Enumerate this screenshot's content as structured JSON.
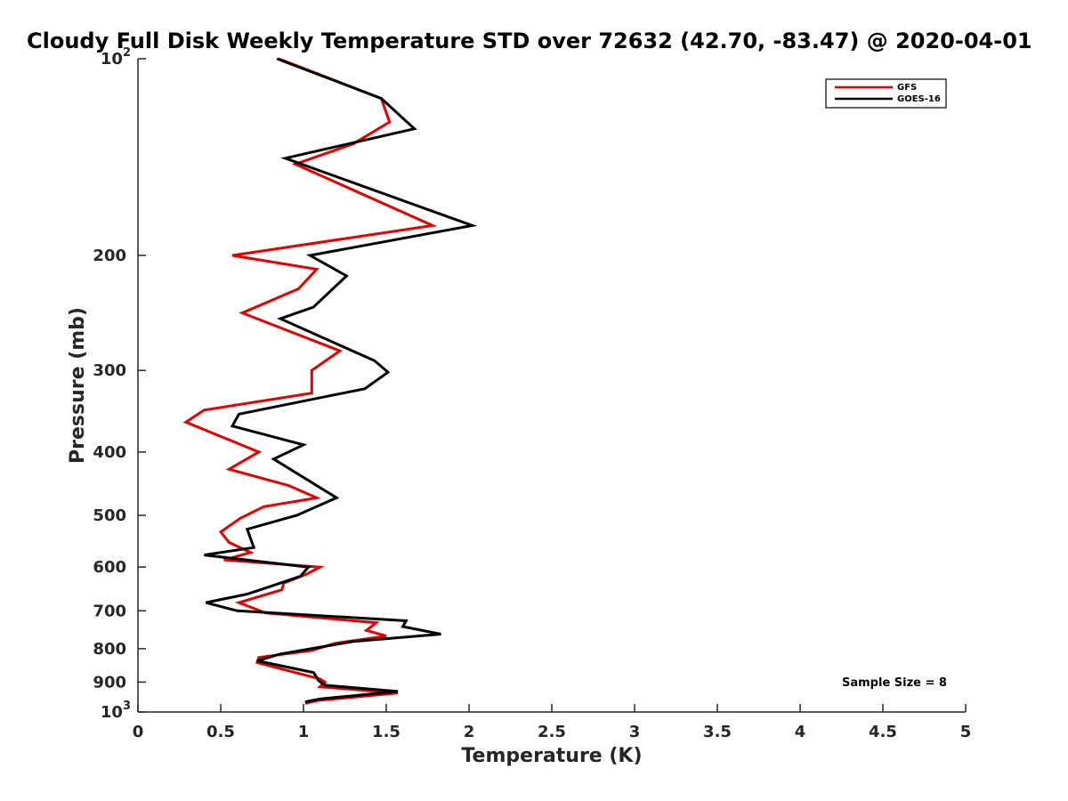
{
  "chart_data": {
    "type": "line",
    "title": "Cloudy Full Disk Weekly Temperature STD over 72632 (42.70, -83.47) @ 2020-04-01",
    "xlabel": "Temperature (K)",
    "ylabel": "Pressure (mb)",
    "xlim": [
      0,
      5
    ],
    "ylim": [
      100,
      1000
    ],
    "y_scale": "log",
    "y_reversed": true,
    "grid": false,
    "legend_position": "top-right",
    "x_ticks": [
      0,
      0.5,
      1,
      1.5,
      2,
      2.5,
      3,
      3.5,
      4,
      4.5,
      5
    ],
    "x_tick_labels": [
      "0",
      "0.5",
      "1",
      "1.5",
      "2",
      "2.5",
      "3",
      "3.5",
      "4",
      "4.5",
      "5"
    ],
    "y_ticks": [
      100,
      200,
      300,
      400,
      500,
      600,
      700,
      800,
      900,
      1000
    ],
    "y_tick_labels": [
      {
        "base": "10",
        "exp": "2"
      },
      {
        "base": "200",
        "exp": ""
      },
      {
        "base": "300",
        "exp": ""
      },
      {
        "base": "400",
        "exp": ""
      },
      {
        "base": "500",
        "exp": ""
      },
      {
        "base": "600",
        "exp": ""
      },
      {
        "base": "700",
        "exp": ""
      },
      {
        "base": "800",
        "exp": ""
      },
      {
        "base": "900",
        "exp": ""
      },
      {
        "base": "10",
        "exp": "3"
      }
    ],
    "annotation": "Sample Size = 8",
    "series": [
      {
        "name": "GFS",
        "color": "#e60000",
        "points": [
          [
            0.85,
            100
          ],
          [
            1.47,
            115
          ],
          [
            1.52,
            125
          ],
          [
            1.3,
            135
          ],
          [
            0.95,
            145
          ],
          [
            1.78,
            180
          ],
          [
            0.57,
            200
          ],
          [
            1.08,
            210
          ],
          [
            0.97,
            225
          ],
          [
            0.63,
            245
          ],
          [
            1.22,
            280
          ],
          [
            1.05,
            300
          ],
          [
            1.05,
            325
          ],
          [
            0.4,
            345
          ],
          [
            0.29,
            360
          ],
          [
            0.73,
            400
          ],
          [
            0.55,
            425
          ],
          [
            0.91,
            450
          ],
          [
            1.08,
            470
          ],
          [
            0.76,
            485
          ],
          [
            0.62,
            505
          ],
          [
            0.5,
            530
          ],
          [
            0.55,
            550
          ],
          [
            0.68,
            570
          ],
          [
            0.52,
            585
          ],
          [
            1.1,
            600
          ],
          [
            1.02,
            615
          ],
          [
            0.88,
            635
          ],
          [
            0.87,
            650
          ],
          [
            0.61,
            680
          ],
          [
            0.77,
            705
          ],
          [
            1.44,
            730
          ],
          [
            1.38,
            750
          ],
          [
            1.5,
            765
          ],
          [
            1.19,
            785
          ],
          [
            1.05,
            805
          ],
          [
            0.73,
            825
          ],
          [
            0.72,
            840
          ],
          [
            1.1,
            890
          ],
          [
            1.13,
            900
          ],
          [
            1.1,
            915
          ],
          [
            1.57,
            935
          ],
          [
            1.09,
            960
          ],
          [
            1.01,
            970
          ]
        ]
      },
      {
        "name": "GOES-16",
        "color": "#000000",
        "points": [
          [
            0.84,
            100
          ],
          [
            1.47,
            115
          ],
          [
            1.67,
            128
          ],
          [
            0.89,
            142
          ],
          [
            2.02,
            180
          ],
          [
            1.04,
            200
          ],
          [
            1.26,
            215
          ],
          [
            1.06,
            240
          ],
          [
            0.86,
            250
          ],
          [
            1.43,
            290
          ],
          [
            1.51,
            302
          ],
          [
            1.37,
            320
          ],
          [
            0.61,
            350
          ],
          [
            0.57,
            365
          ],
          [
            1.0,
            390
          ],
          [
            0.82,
            410
          ],
          [
            1.2,
            470
          ],
          [
            0.96,
            500
          ],
          [
            0.66,
            525
          ],
          [
            0.7,
            560
          ],
          [
            0.4,
            575
          ],
          [
            1.03,
            600
          ],
          [
            0.98,
            620
          ],
          [
            0.82,
            640
          ],
          [
            0.66,
            660
          ],
          [
            0.41,
            680
          ],
          [
            0.6,
            700
          ],
          [
            1.62,
            725
          ],
          [
            1.6,
            740
          ],
          [
            1.83,
            760
          ],
          [
            1.3,
            780
          ],
          [
            0.86,
            815
          ],
          [
            0.72,
            835
          ],
          [
            1.06,
            870
          ],
          [
            1.08,
            885
          ],
          [
            1.09,
            895
          ],
          [
            1.13,
            910
          ],
          [
            1.57,
            930
          ],
          [
            1.1,
            955
          ],
          [
            1.01,
            965
          ]
        ]
      }
    ]
  }
}
